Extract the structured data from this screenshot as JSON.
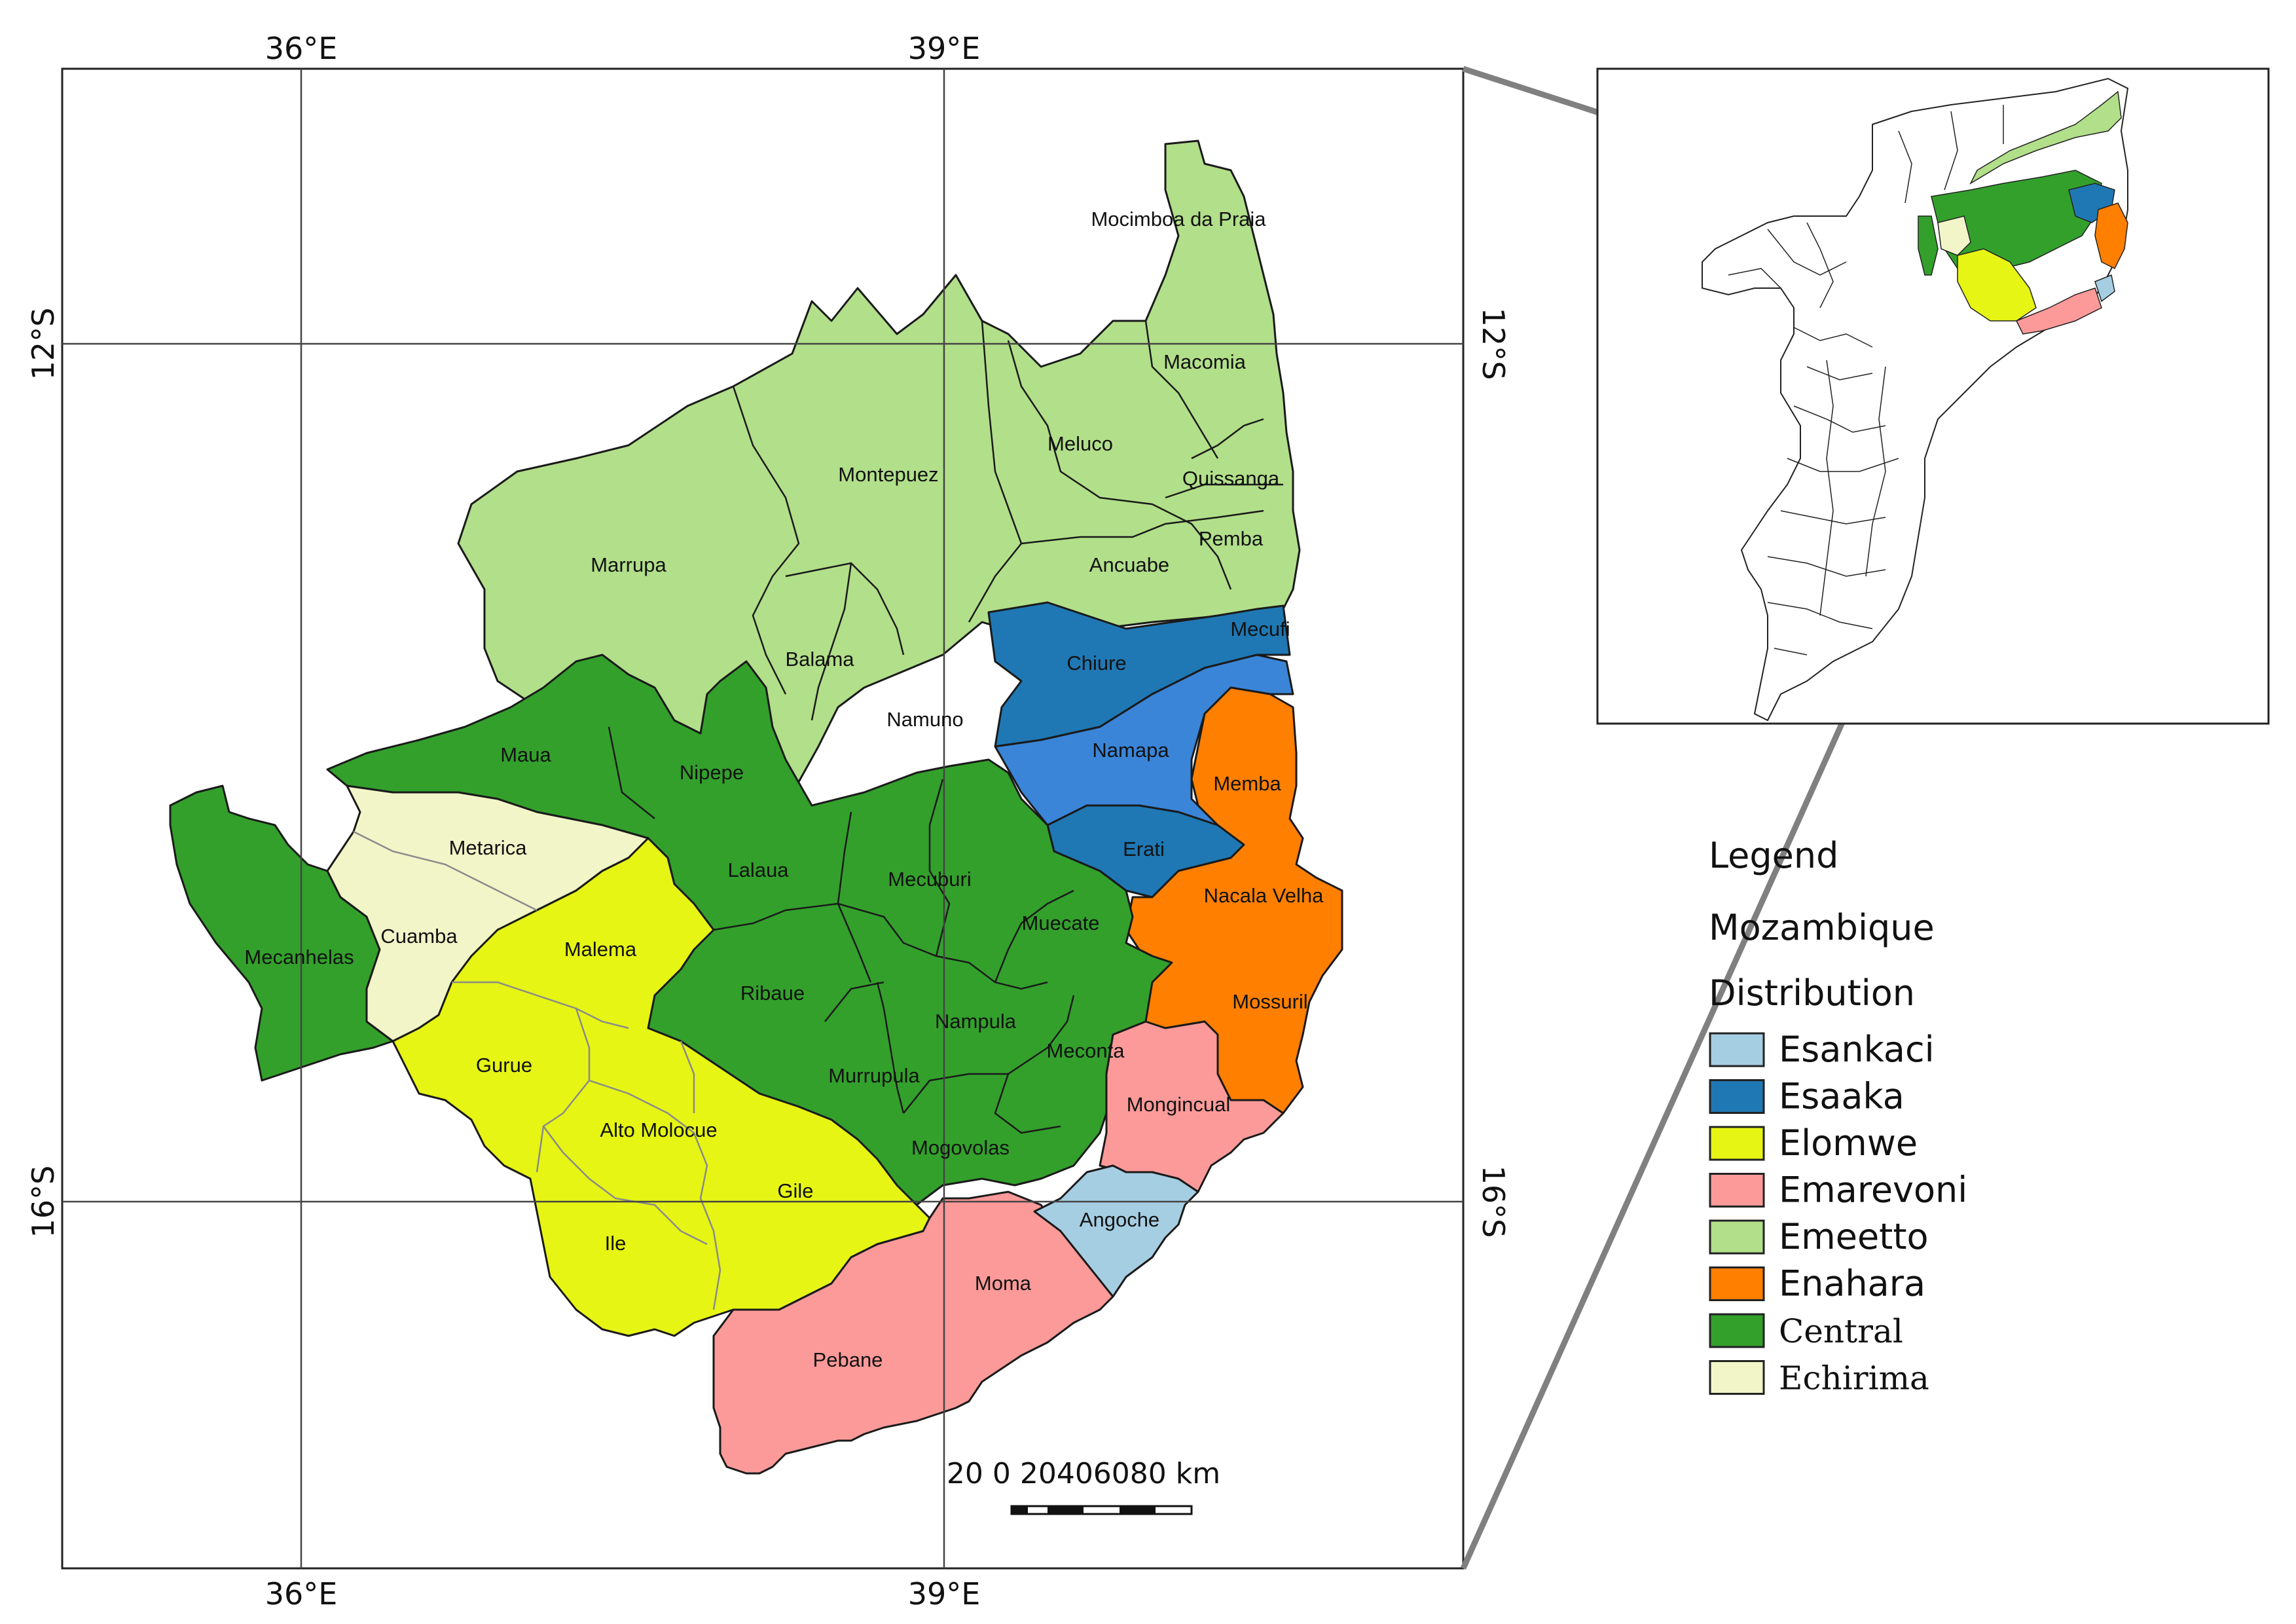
{
  "colors": {
    "Esankaci": "#a6cee3",
    "Esaaka": "#1f78b4",
    "Esaaka_light": "#3a85d8",
    "Elomwe": "#e6f514",
    "Emarevoni": "#fb9a99",
    "Emeetto": "#b2df8a",
    "Enahara": "#ff7f00",
    "Central": "#33a02c",
    "Echirima": "#f2f5c8"
  },
  "axes": {
    "top": [
      "36°E",
      "39°E"
    ],
    "bottom": [
      "36°E",
      "39°E"
    ],
    "left": [
      "12°S",
      "16°S"
    ],
    "right": [
      "12°S",
      "16°S"
    ]
  },
  "districts": {
    "mocimboa": "Mocimboa da Praia",
    "macomia": "Macomia",
    "meluco": "Meluco",
    "montepuez": "Montepuez",
    "quissanga": "Quissanga",
    "pemba": "Pemba",
    "marrupa": "Marrupa",
    "ancuabe": "Ancuabe",
    "balama": "Balama",
    "chiure": "Chiure",
    "mecufi": "Mecufi",
    "namuno": "Namuno",
    "maua": "Maua",
    "nipepe": "Nipepe",
    "namapa": "Namapa",
    "memba": "Memba",
    "metarica": "Metarica",
    "lalaua": "Lalaua",
    "mecuburi": "Mecuburi",
    "erati": "Erati",
    "nacala_velha": "Nacala Velha",
    "cuamba": "Cuamba",
    "malema": "Malema",
    "muecate": "Muecate",
    "mecanhelas": "Mecanhelas",
    "ribaue": "Ribaue",
    "nampula": "Nampula",
    "mossuril": "Mossuril",
    "gurue": "Gurue",
    "meconta": "Meconta",
    "murrupula": "Murrupula",
    "mongincual": "Mongincual",
    "alto_molocue": "Alto Molocue",
    "mogovolas": "Mogovolas",
    "gile": "Gile",
    "angoche": "Angoche",
    "ile": "Ile",
    "moma": "Moma",
    "pebane": "Pebane"
  },
  "legend": {
    "title": "Legend",
    "country": "Mozambique",
    "subtitle": "Distribution",
    "items": [
      {
        "label": "Esankaci",
        "color": "#a6cee3"
      },
      {
        "label": "Esaaka",
        "color": "#1f78b4"
      },
      {
        "label": "Elomwe",
        "color": "#e6f514"
      },
      {
        "label": "Emarevoni",
        "color": "#fb9a99"
      },
      {
        "label": "Emeetto",
        "color": "#b2df8a"
      },
      {
        "label": "Enahara",
        "color": "#ff7f00"
      },
      {
        "label": "Central",
        "color": "#33a02c"
      },
      {
        "label": "Echirima",
        "color": "#f2f5c8"
      }
    ]
  },
  "scale_bar": {
    "label": "20 0 20406080 km"
  }
}
